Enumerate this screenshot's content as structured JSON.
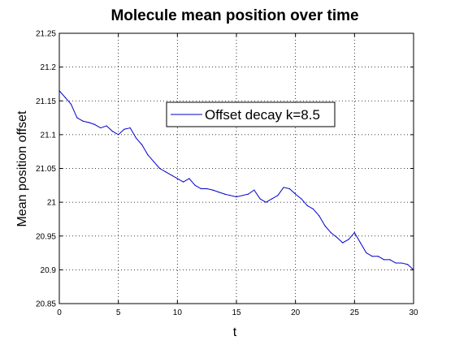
{
  "chart_data": {
    "type": "line",
    "title": "Molecule mean position over time",
    "xlabel": "t",
    "ylabel": "Mean position offset",
    "xlim": [
      0,
      30
    ],
    "ylim": [
      20.85,
      21.25
    ],
    "x_ticks": [
      "0",
      "5",
      "10",
      "15",
      "20",
      "25",
      "30"
    ],
    "y_ticks": [
      "20.85",
      "20.9",
      "20.95",
      "21",
      "21.05",
      "21.1",
      "21.15",
      "21.2",
      "21.25"
    ],
    "grid": true,
    "legend_position": "upper-center",
    "series": [
      {
        "name": "Offset decay k=8.5",
        "color": "#0000cc",
        "x": [
          0,
          0.5,
          1,
          1.5,
          2,
          2.5,
          3,
          3.5,
          4,
          4.5,
          5,
          5.5,
          6,
          6.5,
          7,
          7.5,
          8,
          8.5,
          9,
          9.5,
          10,
          10.5,
          11,
          11.5,
          12,
          12.5,
          13,
          13.5,
          14,
          14.5,
          15,
          15.5,
          16,
          16.5,
          17,
          17.5,
          18,
          18.5,
          19,
          19.5,
          20,
          20.5,
          21,
          21.5,
          22,
          22.5,
          23,
          23.5,
          24,
          24.5,
          25,
          25.5,
          26,
          26.5,
          27,
          27.5,
          28,
          28.5,
          29,
          29.5,
          30
        ],
        "values": [
          21.165,
          21.155,
          21.145,
          21.125,
          21.12,
          21.118,
          21.115,
          21.11,
          21.113,
          21.105,
          21.1,
          21.108,
          21.11,
          21.095,
          21.085,
          21.07,
          21.06,
          21.05,
          21.045,
          21.04,
          21.035,
          21.03,
          21.035,
          21.025,
          21.02,
          21.02,
          21.018,
          21.015,
          21.012,
          21.01,
          21.008,
          21.01,
          21.012,
          21.018,
          21.005,
          21.0,
          21.005,
          21.01,
          21.022,
          21.02,
          21.012,
          21.005,
          20.995,
          20.99,
          20.98,
          20.965,
          20.955,
          20.948,
          20.94,
          20.945,
          20.955,
          20.94,
          20.925,
          20.92,
          20.92,
          20.915,
          20.915,
          20.91,
          20.91,
          20.908,
          20.9
        ]
      }
    ]
  }
}
